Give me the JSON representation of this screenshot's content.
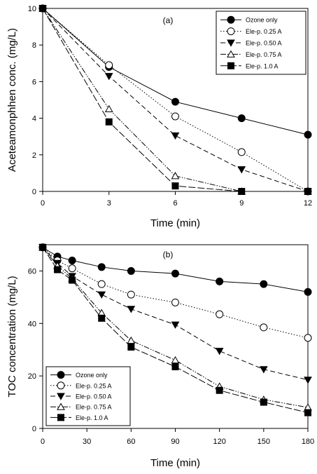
{
  "chart_data": [
    {
      "type": "line",
      "panel_label": "(a)",
      "xlabel": "Time (min)",
      "ylabel": "Aceteamonphhen conc. (mg/L)",
      "x": [
        0,
        3,
        6,
        9,
        12
      ],
      "xlim": [
        0,
        12
      ],
      "ylim": [
        0,
        10
      ],
      "xticks": [
        0,
        3,
        6,
        9,
        12
      ],
      "yticks": [
        0,
        2,
        4,
        6,
        8,
        10
      ],
      "legend_position": "top-right",
      "grid": false,
      "series": [
        {
          "name": "Ozone only",
          "marker": "filled-circle",
          "dash": "solid",
          "values": [
            10,
            6.8,
            4.9,
            4.0,
            3.1
          ]
        },
        {
          "name": "Ele-p. 0.25 A",
          "marker": "open-circle",
          "dash": "dotted",
          "values": [
            10,
            6.9,
            4.1,
            2.15,
            0
          ]
        },
        {
          "name": "Ele-p. 0.50 A",
          "marker": "filled-triangle-down",
          "dash": "dashed",
          "values": [
            10,
            6.3,
            3.05,
            1.2,
            0
          ]
        },
        {
          "name": "Ele-p. 0.75 A",
          "marker": "open-triangle-up",
          "dash": "dash-dot-dot",
          "values": [
            10,
            4.5,
            0.85,
            0,
            0
          ]
        },
        {
          "name": "Ele-p. 1.0 A",
          "marker": "filled-square",
          "dash": "long-dash",
          "values": [
            10,
            3.8,
            0.3,
            0,
            0
          ]
        }
      ]
    },
    {
      "type": "line",
      "panel_label": "(b)",
      "xlabel": "Time (min)",
      "ylabel": "TOC concentration (mg/L)",
      "x": [
        0,
        10,
        20,
        40,
        60,
        90,
        120,
        150,
        180
      ],
      "xlim": [
        0,
        180
      ],
      "ylim": [
        0,
        70
      ],
      "xticks": [
        0,
        30,
        60,
        90,
        120,
        150,
        180
      ],
      "yticks": [
        0,
        20,
        40,
        60
      ],
      "legend_position": "bottom-left",
      "grid": false,
      "series": [
        {
          "name": "Ozone only",
          "marker": "filled-circle",
          "dash": "solid",
          "values": [
            69,
            65.5,
            64,
            61.5,
            60,
            59,
            56,
            55,
            52
          ]
        },
        {
          "name": "Ele-p. 0.25 A",
          "marker": "open-circle",
          "dash": "dotted",
          "values": [
            69,
            64,
            61,
            55,
            51,
            48,
            43.5,
            38.5,
            34.5
          ]
        },
        {
          "name": "Ele-p. 0.50 A",
          "marker": "filled-triangle-down",
          "dash": "dashed",
          "values": [
            69,
            63,
            58,
            51,
            45.5,
            39.5,
            29.5,
            22.5,
            18.5
          ]
        },
        {
          "name": "Ele-p.  0.75 A",
          "marker": "open-triangle-up",
          "dash": "dash-dot-dot",
          "values": [
            69,
            62,
            57,
            44,
            33.5,
            26,
            16,
            11,
            8
          ]
        },
        {
          "name": "Ele-p. 1.0 A",
          "marker": "filled-square",
          "dash": "long-dash",
          "values": [
            69,
            60.5,
            56.5,
            42,
            31,
            23.5,
            14.5,
            10,
            6
          ]
        }
      ]
    }
  ]
}
